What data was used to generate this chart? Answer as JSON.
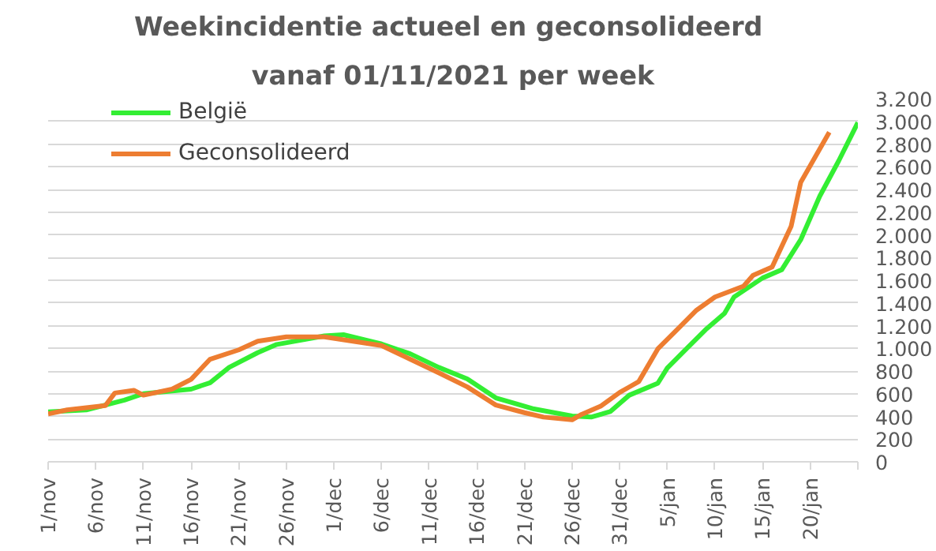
{
  "chart_data": {
    "type": "line",
    "title": "Weekincidentie  actueel en geconsolideerd",
    "subtitle": "vanaf 01/11/2021 per week",
    "xlim": [
      "2021-11-01",
      "2022-01-25"
    ],
    "xticks": [
      {
        "value": "2021-11-01",
        "label": "1/nov"
      },
      {
        "value": "2021-11-06",
        "label": "6/nov"
      },
      {
        "value": "2021-11-11",
        "label": "11/nov"
      },
      {
        "value": "2021-11-16",
        "label": "16/nov"
      },
      {
        "value": "2021-11-21",
        "label": "21/nov"
      },
      {
        "value": "2021-11-26",
        "label": "26/nov"
      },
      {
        "value": "2021-12-01",
        "label": "1/dec"
      },
      {
        "value": "2021-12-06",
        "label": "6/dec"
      },
      {
        "value": "2021-12-11",
        "label": "11/dec"
      },
      {
        "value": "2021-12-16",
        "label": "16/dec"
      },
      {
        "value": "2021-12-21",
        "label": "21/dec"
      },
      {
        "value": "2021-12-26",
        "label": "26/dec"
      },
      {
        "value": "2021-12-31",
        "label": "31/dec"
      },
      {
        "value": "2022-01-05",
        "label": "5/jan"
      },
      {
        "value": "2022-01-10",
        "label": "10/jan"
      },
      {
        "value": "2022-01-15",
        "label": "15/jan"
      },
      {
        "value": "2022-01-20",
        "label": "20/jan"
      },
      {
        "value": "2022-01-25",
        "label": null
      }
    ],
    "ylim": [
      0,
      3200
    ],
    "yticks": [
      0,
      200,
      400,
      600,
      800,
      {
        "value": 1000,
        "label": "1.000"
      },
      {
        "value": 1200,
        "label": "1.200"
      },
      {
        "value": 1400,
        "label": "1.400"
      },
      {
        "value": 1600,
        "label": "1.600"
      },
      {
        "value": 1800,
        "label": "1.800"
      },
      {
        "value": 2000,
        "label": "2.000"
      },
      {
        "value": 2200,
        "label": "2.200"
      },
      {
        "value": 2400,
        "label": "2.400"
      },
      {
        "value": 2600,
        "label": "2.600"
      },
      {
        "value": 2800,
        "label": "2.800"
      },
      {
        "value": 3000,
        "label": "3.000"
      },
      {
        "value": 3200,
        "label": "3.200"
      }
    ],
    "grid": "y",
    "legend": "top left",
    "series": [
      {
        "name": "België",
        "color": "#33ee33",
        "x": [
          "2021-11-01",
          "2021-11-05",
          "2021-11-09",
          "2021-11-11",
          "2021-11-16",
          "2021-11-18",
          "2021-11-20",
          "2021-11-23",
          "2021-11-25",
          "2021-11-30",
          "2021-12-02",
          "2021-12-06",
          "2021-12-09",
          "2021-12-12",
          "2021-12-15",
          "2021-12-18",
          "2021-12-22",
          "2021-12-26",
          "2021-12-28",
          "2021-12-30",
          "2022-01-01",
          "2022-01-04",
          "2022-01-05",
          "2022-01-07",
          "2022-01-09",
          "2022-01-11",
          "2022-01-12",
          "2022-01-15",
          "2022-01-17",
          "2022-01-19",
          "2022-01-21",
          "2022-01-23",
          "2022-01-25"
        ],
        "values": [
          440,
          457,
          543,
          600,
          640,
          697,
          832,
          962,
          1034,
          1110,
          1120,
          1038,
          952,
          832,
          731,
          563,
          466,
          404,
          394,
          442,
          587,
          692,
          827,
          995,
          1163,
          1308,
          1452,
          1620,
          1692,
          1957,
          2341,
          2654,
          2990
        ]
      },
      {
        "name": "Geconsolideerd",
        "color": "#ed7d31",
        "x": [
          "2021-11-01",
          "2021-11-03",
          "2021-11-07",
          "2021-11-08",
          "2021-11-10",
          "2021-11-11",
          "2021-11-14",
          "2021-11-16",
          "2021-11-18",
          "2021-11-21",
          "2021-11-23",
          "2021-11-26",
          "2021-11-30",
          "2021-12-03",
          "2021-12-06",
          "2021-12-09",
          "2021-12-12",
          "2021-12-15",
          "2021-12-18",
          "2021-12-21",
          "2021-12-23",
          "2021-12-26",
          "2021-12-27",
          "2021-12-29",
          "2021-12-31",
          "2022-01-01",
          "2022-01-02",
          "2022-01-04",
          "2022-01-06",
          "2022-01-08",
          "2022-01-10",
          "2022-01-13",
          "2022-01-14",
          "2022-01-16",
          "2022-01-18",
          "2022-01-19",
          "2022-01-22"
        ],
        "values": [
          423,
          457,
          495,
          606,
          630,
          587,
          640,
          726,
          904,
          986,
          1062,
          1101,
          1101,
          1062,
          1024,
          904,
          784,
          660,
          500,
          433,
          394,
          370,
          418,
          490,
          611,
          659,
          707,
          995,
          1163,
          1332,
          1452,
          1548,
          1644,
          1716,
          2077,
          2462,
          2904
        ]
      }
    ]
  }
}
